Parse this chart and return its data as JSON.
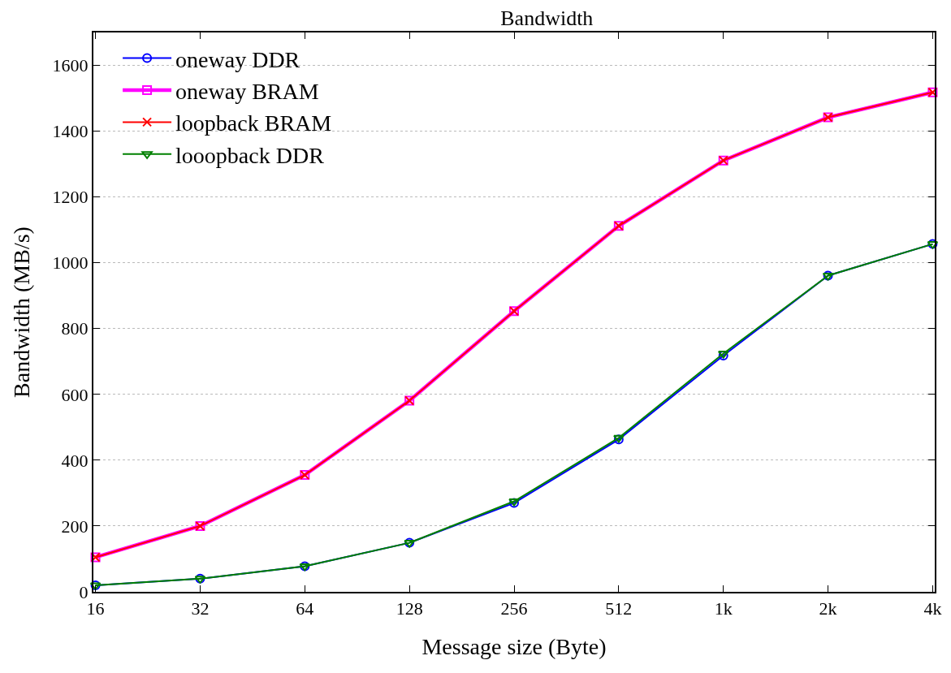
{
  "chart_data": {
    "type": "line",
    "title": "Bandwidth",
    "xlabel": "Message size (Byte)",
    "ylabel": "Bandwidth (MB/s)",
    "categories": [
      "16",
      "32",
      "64",
      "128",
      "256",
      "512",
      "1k",
      "2k",
      "4k"
    ],
    "series": [
      {
        "name": "oneway DDR",
        "color": "#0000ff",
        "marker": "circle",
        "values": [
          20,
          40,
          78,
          149,
          270,
          463,
          718,
          961,
          1057
        ]
      },
      {
        "name": "oneway BRAM",
        "color": "#ff00ff",
        "marker": "square",
        "values": [
          105,
          200,
          355,
          581,
          853,
          1112,
          1311,
          1442,
          1518
        ]
      },
      {
        "name": "loopback BRAM",
        "color": "#ff0000",
        "marker": "cross",
        "values": [
          105,
          200,
          355,
          581,
          853,
          1112,
          1311,
          1442,
          1518
        ]
      },
      {
        "name": "looopback DDR",
        "color": "#008000",
        "marker": "triangle",
        "values": [
          20,
          40,
          78,
          149,
          275,
          468,
          724,
          961,
          1057
        ]
      }
    ],
    "ylim": [
      0,
      1700
    ],
    "yticks": [
      0,
      200,
      400,
      600,
      800,
      1000,
      1200,
      1400,
      1600
    ],
    "grid": "y",
    "legend": "top left",
    "line_style": "solid"
  }
}
